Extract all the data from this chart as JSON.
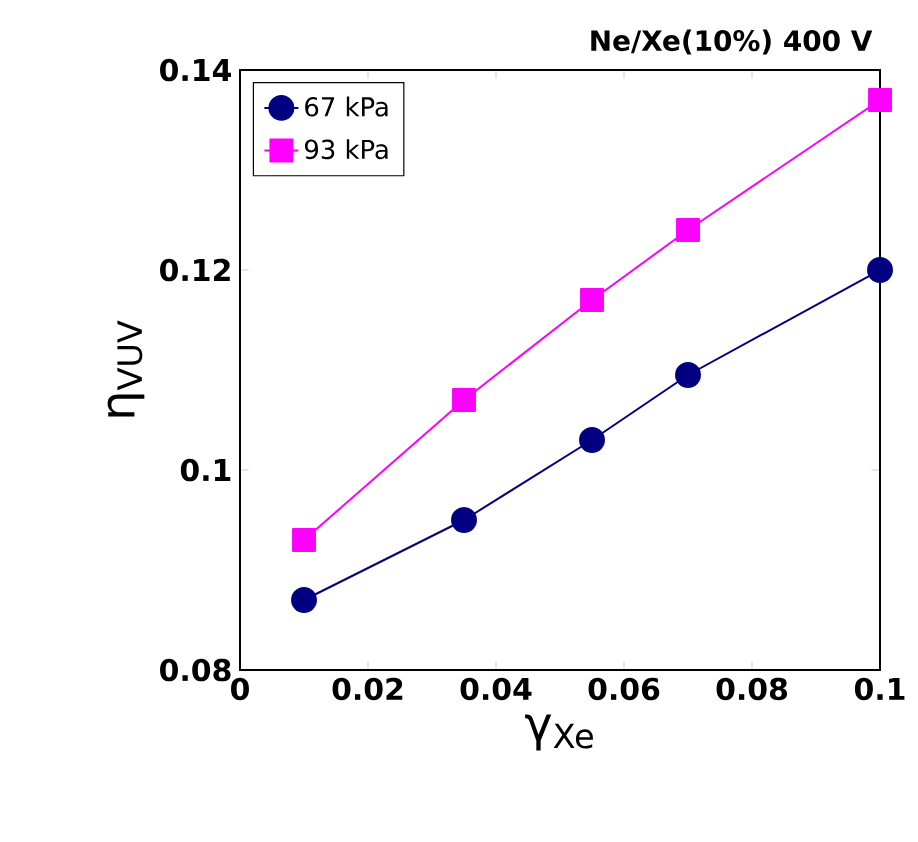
{
  "chart_data": {
    "type": "line",
    "title": "Ne/Xe(10%) 400 V",
    "xlabel": "γ$_{Xe}$",
    "ylabel": "η$_{VUV}$",
    "x": [
      0.01,
      0.035,
      0.055,
      0.07,
      0.1
    ],
    "series": [
      {
        "name": "67 kPa",
        "color": "#000080",
        "marker": "circle",
        "values": [
          0.087,
          0.095,
          0.103,
          0.1095,
          0.12
        ]
      },
      {
        "name": "93 kPa",
        "color": "#ff00ff",
        "marker": "square",
        "values": [
          0.093,
          0.107,
          0.117,
          0.124,
          0.137
        ]
      }
    ],
    "xlim": [
      0,
      0.1
    ],
    "ylim": [
      0.08,
      0.14
    ],
    "xticks": [
      0,
      0.02,
      0.04,
      0.06,
      0.08,
      0.1
    ],
    "yticks": [
      0.08,
      0.1,
      0.12,
      0.14
    ],
    "grid": false,
    "legend": "top left",
    "line_style": "solid"
  }
}
